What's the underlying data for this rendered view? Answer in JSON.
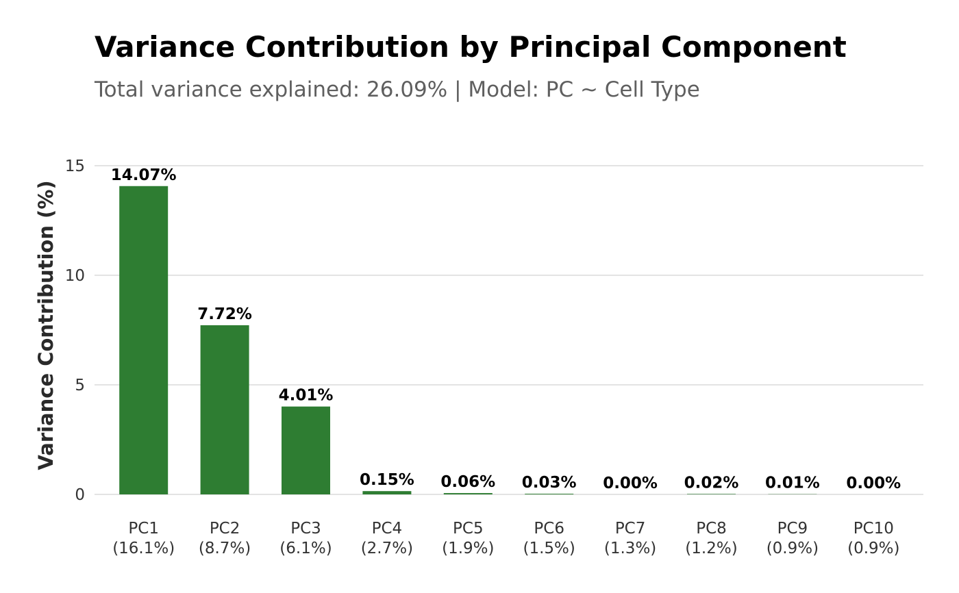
{
  "chart_data": {
    "type": "bar",
    "title": "Variance Contribution by Principal Component",
    "subtitle": "Total variance explained: 26.09% | Model: PC ~ Cell Type",
    "xlabel": "",
    "ylabel": "Variance Contribution (%)",
    "ylim": [
      0,
      15
    ],
    "yticks": [
      0,
      5,
      10,
      15
    ],
    "grid": "horizontal",
    "bar_color": "#2e7d32",
    "categories": [
      "PC1",
      "PC2",
      "PC3",
      "PC4",
      "PC5",
      "PC6",
      "PC7",
      "PC8",
      "PC9",
      "PC10"
    ],
    "category_sublabels": [
      "(16.1%)",
      "(8.7%)",
      "(6.1%)",
      "(2.7%)",
      "(1.9%)",
      "(1.5%)",
      "(1.3%)",
      "(1.2%)",
      "(0.9%)",
      "(0.9%)"
    ],
    "values": [
      14.07,
      7.72,
      4.01,
      0.15,
      0.06,
      0.03,
      0.0,
      0.02,
      0.01,
      0.0
    ],
    "data_labels": [
      "14.07%",
      "7.72%",
      "4.01%",
      "0.15%",
      "0.06%",
      "0.03%",
      "0.00%",
      "0.02%",
      "0.01%",
      "0.00%"
    ]
  }
}
